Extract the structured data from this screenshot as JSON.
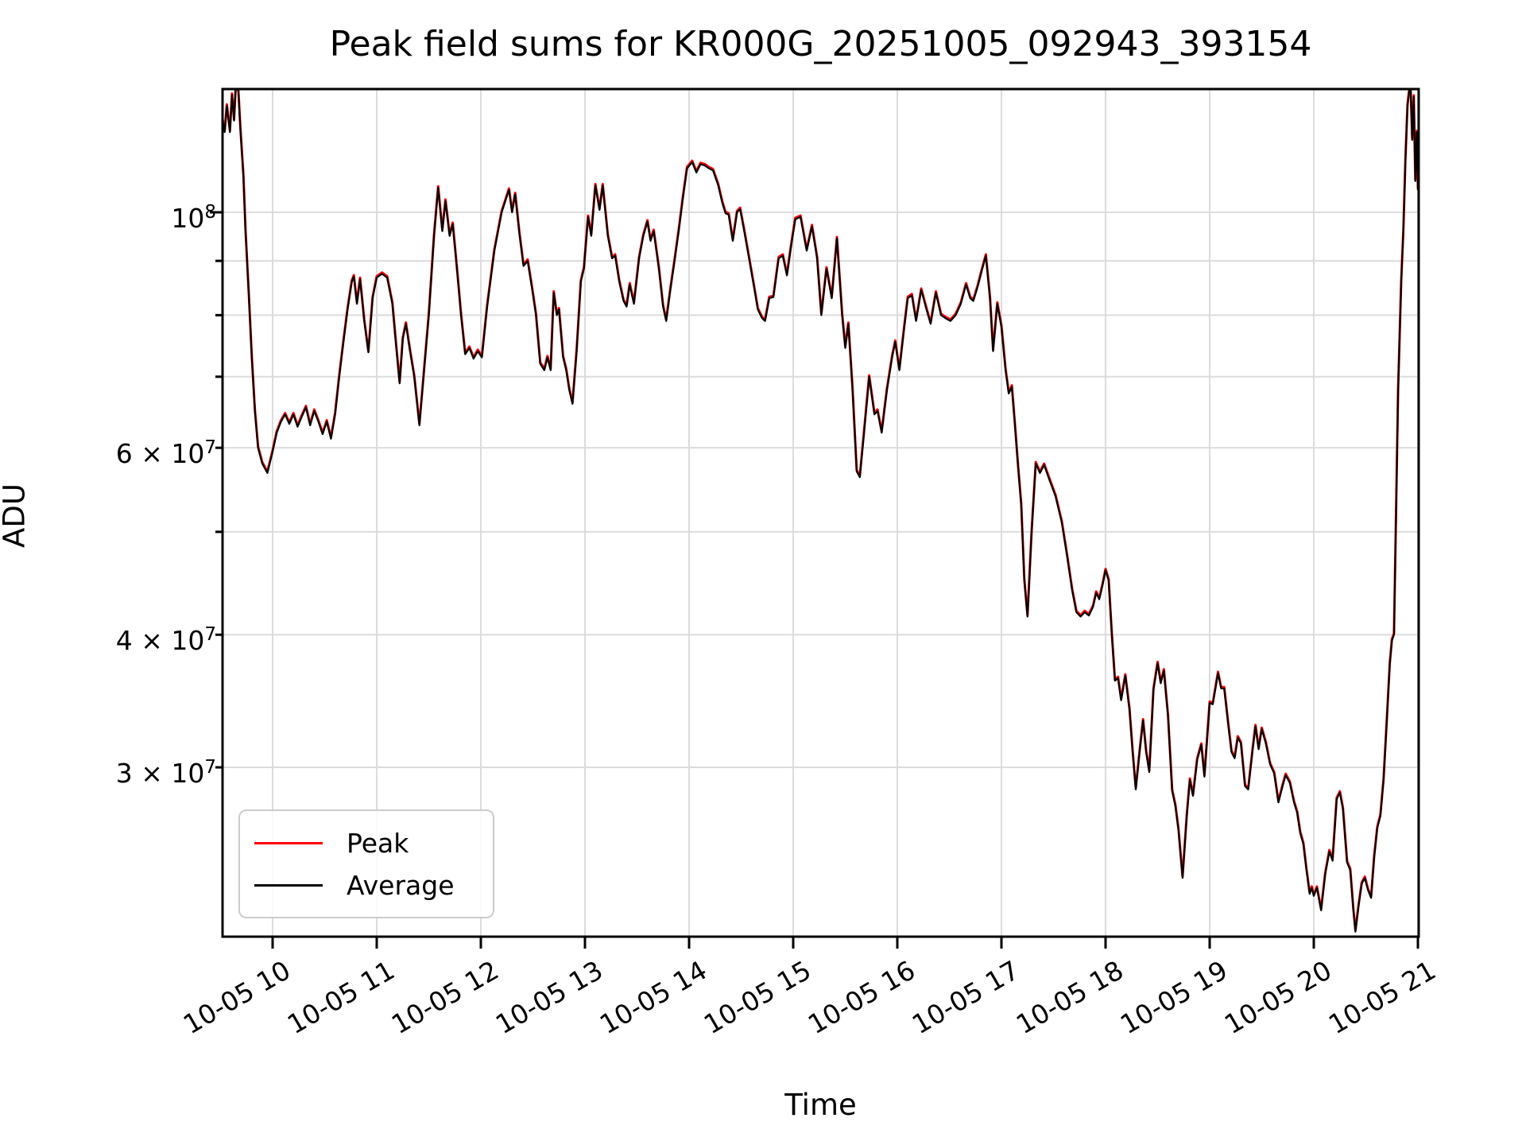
{
  "title": "Peak field sums for KR000G_20251005_092943_393154",
  "axes": {
    "xlabel": "Time",
    "ylabel": "ADU"
  },
  "legend": {
    "items": [
      {
        "label": "Peak",
        "color": "#ff0000"
      },
      {
        "label": "Average",
        "color": "#000000"
      }
    ]
  },
  "chart_data": {
    "type": "line",
    "title": "Peak field sums for KR000G_20251005_092943_393154",
    "xlabel": "Time",
    "ylabel": "ADU",
    "grid": true,
    "legend_position": "lower left",
    "x_axis": {
      "kind": "time (month-day hour on 10-05)",
      "xlim_hours": [
        9.52,
        21.01
      ],
      "ticks": [
        {
          "hour": 10,
          "label": "10-05 10"
        },
        {
          "hour": 11,
          "label": "10-05 11"
        },
        {
          "hour": 12,
          "label": "10-05 12"
        },
        {
          "hour": 13,
          "label": "10-05 13"
        },
        {
          "hour": 14,
          "label": "10-05 14"
        },
        {
          "hour": 15,
          "label": "10-05 15"
        },
        {
          "hour": 16,
          "label": "10-05 16"
        },
        {
          "hour": 17,
          "label": "10-05 17"
        },
        {
          "hour": 18,
          "label": "10-05 18"
        },
        {
          "hour": 19,
          "label": "10-05 19"
        },
        {
          "hour": 20,
          "label": "10-05 20"
        },
        {
          "hour": 21,
          "label": "10-05 21"
        }
      ]
    },
    "y_axis": {
      "scale": "log",
      "unit": "ADU",
      "ylim": [
        20800000,
        131000000
      ],
      "labeled_ticks": [
        {
          "value_1e7": 10,
          "prefix": "",
          "base": "10",
          "exp": "8"
        },
        {
          "value_1e7": 6,
          "prefix": "6 × ",
          "base": "10",
          "exp": "7"
        },
        {
          "value_1e7": 4,
          "prefix": "4 × ",
          "base": "10",
          "exp": "7"
        },
        {
          "value_1e7": 3,
          "prefix": "3 × ",
          "base": "10",
          "exp": "7"
        }
      ],
      "unlabeled_minor_ticks_1e7": [
        9,
        8,
        7,
        5
      ],
      "gridline_values_1e7": [
        10,
        9,
        8,
        7,
        6,
        5,
        4,
        3
      ]
    },
    "series": [
      {
        "name": "Peak",
        "color": "#ff0000",
        "linewidth": 3
      },
      {
        "name": "Average",
        "color": "#000000",
        "linewidth": 2.2
      }
    ],
    "series_note": "Peak and Average coincide almost exactly; Peak (red) is drawn beneath Average (black) and peeks out ~0.3% higher at sharp extremes; top of curve clips at the axes ceiling near 09:40 and 20:55.",
    "peak_offset_factor": 1.003,
    "points_unit": "[decimal hour, value in 1e7 ADU]",
    "points": [
      [
        9.52,
        12.2
      ],
      [
        9.54,
        11.9
      ],
      [
        9.56,
        12.6
      ],
      [
        9.59,
        11.9
      ],
      [
        9.61,
        12.9
      ],
      [
        9.63,
        12.2
      ],
      [
        9.645,
        13.05
      ],
      [
        9.67,
        13.05
      ],
      [
        9.69,
        12.0
      ],
      [
        9.72,
        10.8
      ],
      [
        9.74,
        9.6
      ],
      [
        9.77,
        8.4
      ],
      [
        9.8,
        7.3
      ],
      [
        9.83,
        6.5
      ],
      [
        9.86,
        6.0
      ],
      [
        9.9,
        5.8
      ],
      [
        9.95,
        5.68
      ],
      [
        10.0,
        5.95
      ],
      [
        10.04,
        6.2
      ],
      [
        10.08,
        6.35
      ],
      [
        10.12,
        6.45
      ],
      [
        10.16,
        6.32
      ],
      [
        10.2,
        6.45
      ],
      [
        10.24,
        6.28
      ],
      [
        10.28,
        6.42
      ],
      [
        10.32,
        6.55
      ],
      [
        10.36,
        6.3
      ],
      [
        10.4,
        6.5
      ],
      [
        10.44,
        6.35
      ],
      [
        10.48,
        6.18
      ],
      [
        10.52,
        6.35
      ],
      [
        10.56,
        6.12
      ],
      [
        10.6,
        6.45
      ],
      [
        10.64,
        7.0
      ],
      [
        10.68,
        7.55
      ],
      [
        10.72,
        8.1
      ],
      [
        10.76,
        8.6
      ],
      [
        10.78,
        8.7
      ],
      [
        10.81,
        8.2
      ],
      [
        10.84,
        8.65
      ],
      [
        10.88,
        7.9
      ],
      [
        10.92,
        7.38
      ],
      [
        10.96,
        8.3
      ],
      [
        11.0,
        8.68
      ],
      [
        11.05,
        8.75
      ],
      [
        11.1,
        8.68
      ],
      [
        11.15,
        8.2
      ],
      [
        11.18,
        7.6
      ],
      [
        11.22,
        6.9
      ],
      [
        11.25,
        7.6
      ],
      [
        11.28,
        7.85
      ],
      [
        11.32,
        7.4
      ],
      [
        11.36,
        7.0
      ],
      [
        11.41,
        6.3
      ],
      [
        11.45,
        7.0
      ],
      [
        11.5,
        8.0
      ],
      [
        11.55,
        9.5
      ],
      [
        11.59,
        10.55
      ],
      [
        11.63,
        9.6
      ],
      [
        11.66,
        10.25
      ],
      [
        11.7,
        9.5
      ],
      [
        11.73,
        9.75
      ],
      [
        11.77,
        8.85
      ],
      [
        11.81,
        8.0
      ],
      [
        11.85,
        7.35
      ],
      [
        11.89,
        7.45
      ],
      [
        11.93,
        7.28
      ],
      [
        11.97,
        7.4
      ],
      [
        12.01,
        7.3
      ],
      [
        12.06,
        8.15
      ],
      [
        12.13,
        9.2
      ],
      [
        12.2,
        10.0
      ],
      [
        12.27,
        10.5
      ],
      [
        12.3,
        10.0
      ],
      [
        12.33,
        10.4
      ],
      [
        12.37,
        9.55
      ],
      [
        12.41,
        8.9
      ],
      [
        12.45,
        9.0
      ],
      [
        12.49,
        8.5
      ],
      [
        12.53,
        8.0
      ],
      [
        12.57,
        7.2
      ],
      [
        12.61,
        7.1
      ],
      [
        12.64,
        7.3
      ],
      [
        12.67,
        7.1
      ],
      [
        12.7,
        8.4
      ],
      [
        12.73,
        8.0
      ],
      [
        12.75,
        8.1
      ],
      [
        12.79,
        7.3
      ],
      [
        12.82,
        7.1
      ],
      [
        12.85,
        6.8
      ],
      [
        12.88,
        6.6
      ],
      [
        12.92,
        7.4
      ],
      [
        12.96,
        8.6
      ],
      [
        12.99,
        8.85
      ],
      [
        13.03,
        9.9
      ],
      [
        13.06,
        9.5
      ],
      [
        13.1,
        10.6
      ],
      [
        13.14,
        10.05
      ],
      [
        13.17,
        10.6
      ],
      [
        13.22,
        9.5
      ],
      [
        13.26,
        9.05
      ],
      [
        13.29,
        9.1
      ],
      [
        13.33,
        8.6
      ],
      [
        13.37,
        8.25
      ],
      [
        13.4,
        8.15
      ],
      [
        13.43,
        8.55
      ],
      [
        13.47,
        8.2
      ],
      [
        13.52,
        9.05
      ],
      [
        13.56,
        9.5
      ],
      [
        13.6,
        9.8
      ],
      [
        13.63,
        9.4
      ],
      [
        13.66,
        9.6
      ],
      [
        13.71,
        8.85
      ],
      [
        13.75,
        8.15
      ],
      [
        13.78,
        7.9
      ],
      [
        13.82,
        8.45
      ],
      [
        13.86,
        9.0
      ],
      [
        13.9,
        9.6
      ],
      [
        13.94,
        10.3
      ],
      [
        13.98,
        11.0
      ],
      [
        14.03,
        11.15
      ],
      [
        14.07,
        10.9
      ],
      [
        14.11,
        11.1
      ],
      [
        14.15,
        11.07
      ],
      [
        14.19,
        11.0
      ],
      [
        14.23,
        10.95
      ],
      [
        14.28,
        10.6
      ],
      [
        14.32,
        10.2
      ],
      [
        14.35,
        9.98
      ],
      [
        14.38,
        9.95
      ],
      [
        14.42,
        9.4
      ],
      [
        14.46,
        10.0
      ],
      [
        14.49,
        10.07
      ],
      [
        14.53,
        9.6
      ],
      [
        14.58,
        9.0
      ],
      [
        14.62,
        8.55
      ],
      [
        14.66,
        8.1
      ],
      [
        14.7,
        7.95
      ],
      [
        14.73,
        7.9
      ],
      [
        14.77,
        8.3
      ],
      [
        14.81,
        8.32
      ],
      [
        14.86,
        9.05
      ],
      [
        14.9,
        9.1
      ],
      [
        14.94,
        8.72
      ],
      [
        14.98,
        9.3
      ],
      [
        15.02,
        9.85
      ],
      [
        15.07,
        9.9
      ],
      [
        15.13,
        9.2
      ],
      [
        15.18,
        9.7
      ],
      [
        15.23,
        9.05
      ],
      [
        15.27,
        8.0
      ],
      [
        15.32,
        8.85
      ],
      [
        15.37,
        8.3
      ],
      [
        15.42,
        9.45
      ],
      [
        15.47,
        8.0
      ],
      [
        15.5,
        7.45
      ],
      [
        15.53,
        7.85
      ],
      [
        15.57,
        6.8
      ],
      [
        15.61,
        5.7
      ],
      [
        15.64,
        5.63
      ],
      [
        15.68,
        6.2
      ],
      [
        15.73,
        7.0
      ],
      [
        15.78,
        6.45
      ],
      [
        15.81,
        6.5
      ],
      [
        15.85,
        6.2
      ],
      [
        15.9,
        6.8
      ],
      [
        15.95,
        7.3
      ],
      [
        15.98,
        7.55
      ],
      [
        16.02,
        7.1
      ],
      [
        16.06,
        7.7
      ],
      [
        16.1,
        8.3
      ],
      [
        16.14,
        8.35
      ],
      [
        16.18,
        7.9
      ],
      [
        16.23,
        8.45
      ],
      [
        16.28,
        8.1
      ],
      [
        16.32,
        7.85
      ],
      [
        16.37,
        8.4
      ],
      [
        16.42,
        8.0
      ],
      [
        16.46,
        7.95
      ],
      [
        16.51,
        7.9
      ],
      [
        16.56,
        8.0
      ],
      [
        16.61,
        8.2
      ],
      [
        16.66,
        8.55
      ],
      [
        16.7,
        8.3
      ],
      [
        16.73,
        8.25
      ],
      [
        16.77,
        8.5
      ],
      [
        16.81,
        8.8
      ],
      [
        16.85,
        9.1
      ],
      [
        16.89,
        8.3
      ],
      [
        16.92,
        7.4
      ],
      [
        16.96,
        8.2
      ],
      [
        17.0,
        7.8
      ],
      [
        17.04,
        7.1
      ],
      [
        17.07,
        6.75
      ],
      [
        17.1,
        6.85
      ],
      [
        17.13,
        6.3
      ],
      [
        17.16,
        5.75
      ],
      [
        17.19,
        5.3
      ],
      [
        17.22,
        4.5
      ],
      [
        17.25,
        4.16
      ],
      [
        17.29,
        5.0
      ],
      [
        17.33,
        5.8
      ],
      [
        17.37,
        5.68
      ],
      [
        17.41,
        5.78
      ],
      [
        17.46,
        5.6
      ],
      [
        17.52,
        5.4
      ],
      [
        17.58,
        5.1
      ],
      [
        17.63,
        4.75
      ],
      [
        17.68,
        4.4
      ],
      [
        17.72,
        4.2
      ],
      [
        17.76,
        4.16
      ],
      [
        17.8,
        4.2
      ],
      [
        17.84,
        4.17
      ],
      [
        17.88,
        4.25
      ],
      [
        17.91,
        4.38
      ],
      [
        17.94,
        4.32
      ],
      [
        17.97,
        4.45
      ],
      [
        18.0,
        4.6
      ],
      [
        18.03,
        4.5
      ],
      [
        18.06,
        4.0
      ],
      [
        18.09,
        3.62
      ],
      [
        18.12,
        3.64
      ],
      [
        18.15,
        3.47
      ],
      [
        18.19,
        3.66
      ],
      [
        18.23,
        3.4
      ],
      [
        18.26,
        3.1
      ],
      [
        18.29,
        2.86
      ],
      [
        18.33,
        3.12
      ],
      [
        18.36,
        3.32
      ],
      [
        18.39,
        3.1
      ],
      [
        18.42,
        2.97
      ],
      [
        18.46,
        3.55
      ],
      [
        18.5,
        3.76
      ],
      [
        18.53,
        3.6
      ],
      [
        18.56,
        3.7
      ],
      [
        18.6,
        3.35
      ],
      [
        18.64,
        2.85
      ],
      [
        18.67,
        2.76
      ],
      [
        18.7,
        2.62
      ],
      [
        18.74,
        2.36
      ],
      [
        18.78,
        2.7
      ],
      [
        18.81,
        2.92
      ],
      [
        18.84,
        2.82
      ],
      [
        18.88,
        3.05
      ],
      [
        18.92,
        3.15
      ],
      [
        18.95,
        2.94
      ],
      [
        19.0,
        3.45
      ],
      [
        19.03,
        3.44
      ],
      [
        19.08,
        3.68
      ],
      [
        19.11,
        3.56
      ],
      [
        19.14,
        3.56
      ],
      [
        19.18,
        3.28
      ],
      [
        19.21,
        3.1
      ],
      [
        19.24,
        3.06
      ],
      [
        19.27,
        3.2
      ],
      [
        19.3,
        3.16
      ],
      [
        19.34,
        2.88
      ],
      [
        19.37,
        2.86
      ],
      [
        19.41,
        3.1
      ],
      [
        19.44,
        3.28
      ],
      [
        19.47,
        3.12
      ],
      [
        19.5,
        3.26
      ],
      [
        19.54,
        3.16
      ],
      [
        19.58,
        3.02
      ],
      [
        19.62,
        2.96
      ],
      [
        19.66,
        2.78
      ],
      [
        19.7,
        2.88
      ],
      [
        19.73,
        2.95
      ],
      [
        19.77,
        2.9
      ],
      [
        19.81,
        2.78
      ],
      [
        19.84,
        2.72
      ],
      [
        19.87,
        2.6
      ],
      [
        19.9,
        2.54
      ],
      [
        19.93,
        2.4
      ],
      [
        19.96,
        2.28
      ],
      [
        19.98,
        2.31
      ],
      [
        20.0,
        2.27
      ],
      [
        20.03,
        2.31
      ],
      [
        20.07,
        2.2
      ],
      [
        20.11,
        2.38
      ],
      [
        20.15,
        2.5
      ],
      [
        20.18,
        2.45
      ],
      [
        20.22,
        2.8
      ],
      [
        20.25,
        2.84
      ],
      [
        20.28,
        2.74
      ],
      [
        20.32,
        2.44
      ],
      [
        20.35,
        2.4
      ],
      [
        20.38,
        2.2
      ],
      [
        20.4,
        2.1
      ],
      [
        20.43,
        2.22
      ],
      [
        20.46,
        2.33
      ],
      [
        20.49,
        2.36
      ],
      [
        20.52,
        2.3
      ],
      [
        20.55,
        2.26
      ],
      [
        20.58,
        2.47
      ],
      [
        20.61,
        2.63
      ],
      [
        20.64,
        2.7
      ],
      [
        20.67,
        2.92
      ],
      [
        20.7,
        3.3
      ],
      [
        20.73,
        3.75
      ],
      [
        20.75,
        3.95
      ],
      [
        20.77,
        4.0
      ],
      [
        20.79,
        5.2
      ],
      [
        20.81,
        6.8
      ],
      [
        20.84,
        8.6
      ],
      [
        20.86,
        9.6
      ],
      [
        20.88,
        11.2
      ],
      [
        20.9,
        12.6
      ],
      [
        20.92,
        13.1
      ],
      [
        20.93,
        13.1
      ],
      [
        20.945,
        11.7
      ],
      [
        20.96,
        12.85
      ],
      [
        20.975,
        10.7
      ],
      [
        20.99,
        11.9
      ],
      [
        21.0,
        10.5
      ],
      [
        21.01,
        11.2
      ]
    ]
  }
}
